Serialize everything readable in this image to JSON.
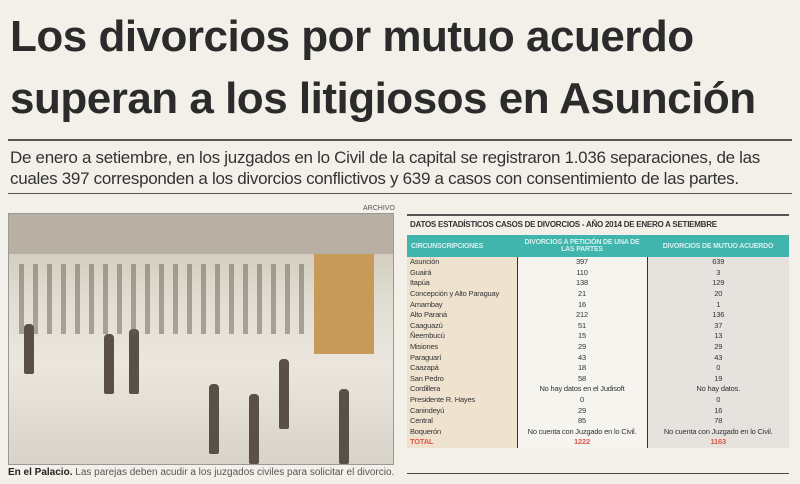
{
  "headline": {
    "line1": "Los divorcios por mutuo acuerdo",
    "line2": "superan a los litigiosos en Asunción"
  },
  "lead": "De enero a setiembre, en los juzgados en lo Civil de la capital se registraron 1.036 separaciones, de las cuales 397 corresponden a los divorcios conflictivos y 639 a casos con consentimiento de las partes.",
  "photo": {
    "credit": "ARCHIVO",
    "caption_bold": "En el Palacio.",
    "caption": " Las parejas deben acudir a los juzgados civiles para solicitar el divorcio."
  },
  "table": {
    "title": "DATOS ESTADÍSTICOS CASOS DE DIVORCIOS - AÑO 2014 DE ENERO A SETIEMBRE",
    "header_color": "#3fb5ad",
    "total_color": "#e0584a",
    "columns": [
      "Circunscripciones",
      "Divorcios a petición de una de las partes",
      "Divorcios de mutuo acuerdo"
    ],
    "rows": [
      [
        "Asunción",
        "397",
        "639"
      ],
      [
        "Guairá",
        "110",
        "3"
      ],
      [
        "Itapúa",
        "138",
        "129"
      ],
      [
        "Concepción y Alto Paraguay",
        "21",
        "20"
      ],
      [
        "Amambay",
        "16",
        "1"
      ],
      [
        "Alto Paraná",
        "212",
        "136"
      ],
      [
        "Caaguazú",
        "51",
        "37"
      ],
      [
        "Ñeembucú",
        "15",
        "13"
      ],
      [
        "Misiones",
        "29",
        "29"
      ],
      [
        "Paraguarí",
        "43",
        "43"
      ],
      [
        "Caazapá",
        "18",
        "0"
      ],
      [
        "San Pedro",
        "58",
        "19"
      ],
      [
        "Cordillera",
        "No hay datos en el  Judisoft",
        "No hay datos."
      ],
      [
        "Presidente R. Hayes",
        "0",
        "0"
      ],
      [
        "Canindeyú",
        "29",
        "16"
      ],
      [
        "Central",
        "85",
        "78"
      ],
      [
        "Boquerón",
        "No cuenta con Juzgado en lo Civil.",
        "No cuenta con Juzgado en lo Civil."
      ]
    ],
    "total": [
      "TOTAL",
      "1222",
      "1163"
    ]
  }
}
